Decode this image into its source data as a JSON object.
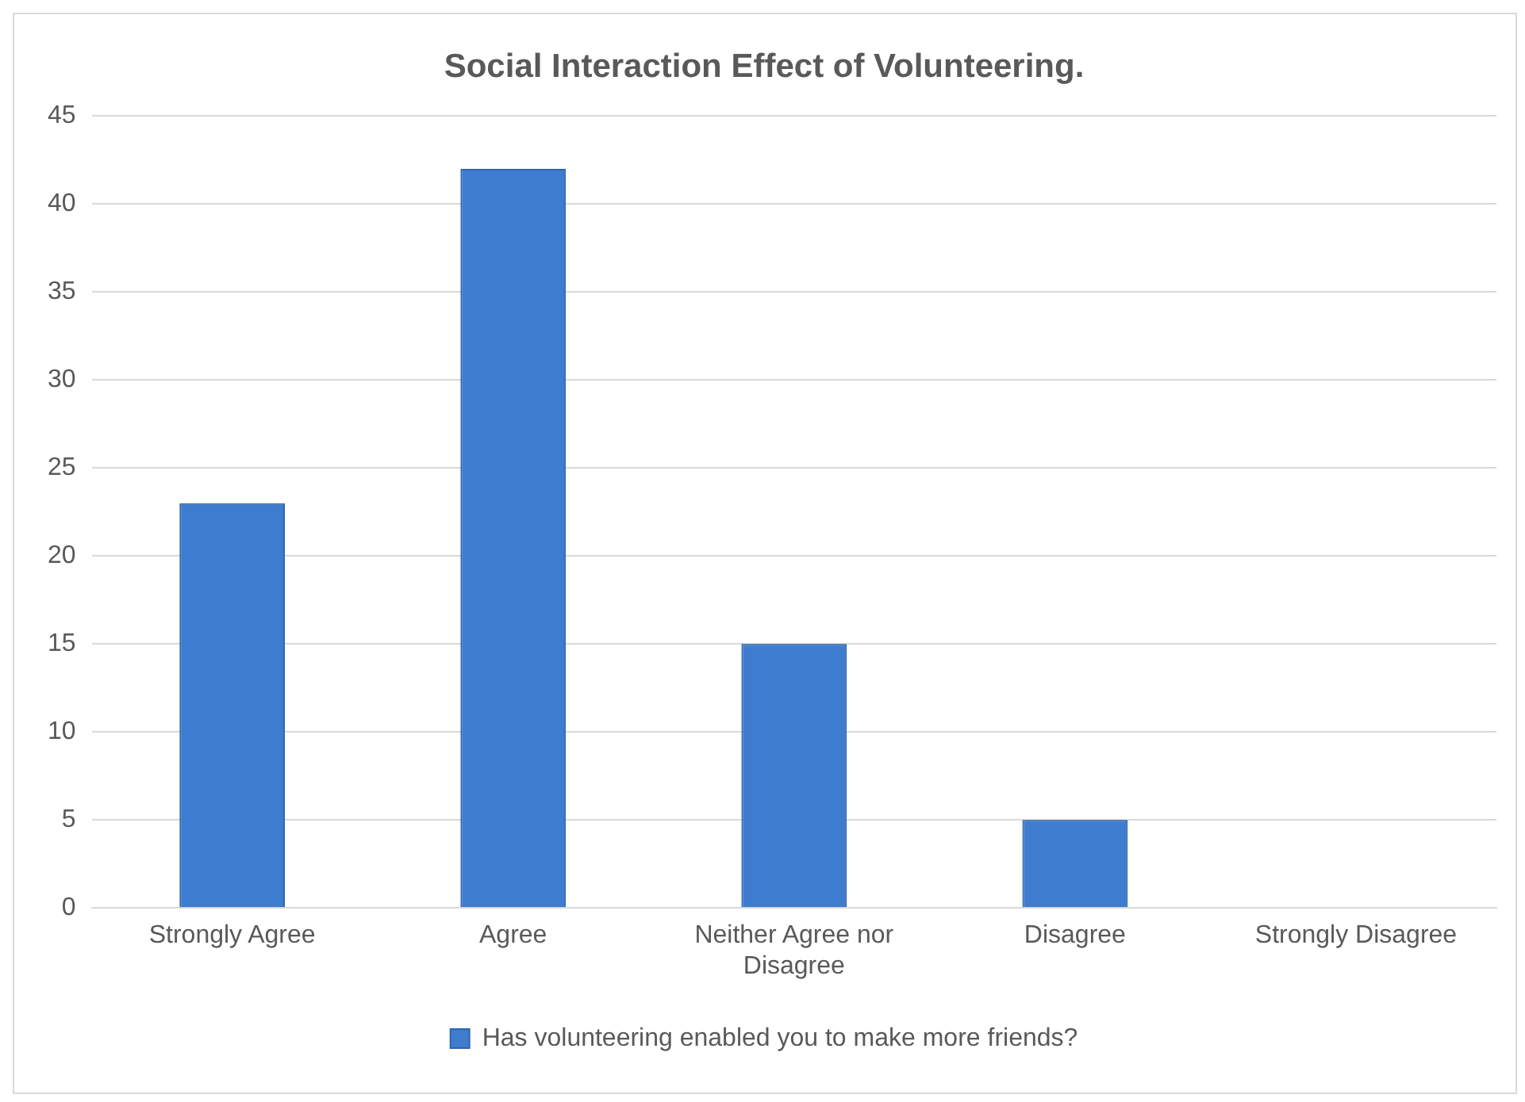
{
  "chart_data": {
    "type": "bar",
    "title": "Social Interaction Effect of Volunteering.",
    "categories": [
      "Strongly Agree",
      "Agree",
      "Neither Agree nor Disagree",
      "Disagree",
      "Strongly Disagree"
    ],
    "series": [
      {
        "name": "Has volunteering enabled you to make more friends?",
        "color": "#3e7ccf",
        "values": [
          23,
          42,
          15,
          5,
          0
        ]
      }
    ],
    "ylim": [
      0,
      45
    ],
    "yticks": [
      0,
      5,
      10,
      15,
      20,
      25,
      30,
      35,
      40,
      45
    ],
    "grid": "y",
    "legend": "bottom"
  }
}
